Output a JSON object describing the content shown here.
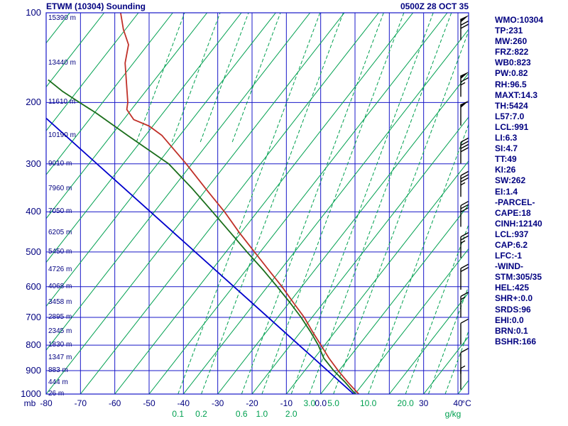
{
  "header": {
    "title": "ETWM (10304) Sounding",
    "timestamp": "0500Z 28 OCT 35"
  },
  "colors": {
    "background": "#ffffff",
    "navy": "#000080",
    "grid_blue": "#1818c8",
    "iso_green": "#00a050",
    "mix_green": "#00a050",
    "temp_red": "#c03028",
    "dewpoint_green": "#1b6e1b",
    "parcel_blue": "#0000cc",
    "barb_black": "#000000"
  },
  "indices": {
    "lines": [
      "WMO:10304",
      "TP:231",
      "MW:260",
      "FRZ:822",
      "WB0:823",
      "PW:0.82",
      "RH:96.5",
      "MAXT:14.3",
      "TH:5424",
      "L57:7.0",
      "LCL:991",
      "LI:6.3",
      "SI:4.7",
      "TT:49",
      "KI:26",
      "SW:262",
      "EI:1.4",
      "-PARCEL-",
      "CAPE:18",
      "CINH:12140",
      "LCL:937",
      "CAP:6.2",
      "LFC:-1",
      "-WIND-",
      "STM:305/35",
      "HEL:425",
      "SHR+:0.0",
      "SRDS:96",
      "EHI:0.0",
      "BRN:0.1",
      "BSHR:166"
    ]
  },
  "chart_data": {
    "type": "line",
    "title": "ETWM (10304) Sounding",
    "subtitle": "0500Z 28 OCT 35",
    "x_axis": {
      "unit": "°C",
      "min": -80,
      "max": 40,
      "ticks": [
        {
          "t": -80,
          "label": "-80"
        },
        {
          "t": -70,
          "label": "-70"
        },
        {
          "t": -60,
          "label": "-60"
        },
        {
          "t": -50,
          "label": "-50"
        },
        {
          "t": -40,
          "label": "-40"
        },
        {
          "t": -30,
          "label": "-30"
        },
        {
          "t": -20,
          "label": "-20"
        },
        {
          "t": -10,
          "label": "-10"
        },
        {
          "t": 0,
          "label": "0.0"
        },
        {
          "t": 30,
          "label": "30"
        },
        {
          "t": 40,
          "label": "40"
        }
      ]
    },
    "y_axis": {
      "unit": "mb",
      "scale": "stuve-pressure",
      "min": 100,
      "max": 1000,
      "ticks": [
        100,
        200,
        300,
        400,
        500,
        600,
        700,
        800,
        900,
        1000
      ]
    },
    "heights": [
      {
        "p": 100,
        "label": "15390 m"
      },
      {
        "p": 150,
        "label": "13440 m"
      },
      {
        "p": 200,
        "label": "11610 m"
      },
      {
        "p": 250,
        "label": "10190 m"
      },
      {
        "p": 300,
        "label": "9010 m"
      },
      {
        "p": 350,
        "label": "7960 m"
      },
      {
        "p": 400,
        "label": "7050 m"
      },
      {
        "p": 450,
        "label": "6205 m"
      },
      {
        "p": 500,
        "label": "5450 m"
      },
      {
        "p": 550,
        "label": "4726 m"
      },
      {
        "p": 600,
        "label": "4068 m"
      },
      {
        "p": 650,
        "label": "3458 m"
      },
      {
        "p": 700,
        "label": "2895 m"
      },
      {
        "p": 750,
        "label": "2345 m"
      },
      {
        "p": 800,
        "label": "1830 m"
      },
      {
        "p": 850,
        "label": "1347 m"
      },
      {
        "p": 900,
        "label": "883 m"
      },
      {
        "p": 950,
        "label": "444 m"
      },
      {
        "p": 1000,
        "label": "26 m"
      }
    ],
    "mixing_ratio": {
      "unit": "g/kg",
      "line_values": [
        0.1,
        0.2,
        0.6,
        1.0,
        2.0,
        3.0,
        5.0,
        10.0,
        20.0,
        30.0,
        40.0
      ],
      "row1_labels": [
        {
          "w": 3,
          "label": "3.0"
        },
        {
          "w": 5,
          "label": "5.0"
        },
        {
          "w": 10,
          "label": "10.0"
        },
        {
          "w": 20,
          "label": "20.0"
        }
      ],
      "row2_labels": [
        {
          "w": 0.1,
          "label": "0.1"
        },
        {
          "w": 0.2,
          "label": "0.2"
        },
        {
          "w": 0.6,
          "label": "0.6"
        },
        {
          "w": 1,
          "label": "1.0"
        },
        {
          "w": 2,
          "label": "2.0"
        }
      ]
    },
    "series": [
      {
        "name": "temperature",
        "color_key": "temp_red",
        "points": [
          [
            1000,
            11.1
          ],
          [
            950,
            8.0
          ],
          [
            900,
            5.1
          ],
          [
            850,
            2.4
          ],
          [
            800,
            0.1
          ],
          [
            750,
            -2.4
          ],
          [
            700,
            -4.8
          ],
          [
            650,
            -8.0
          ],
          [
            600,
            -11.3
          ],
          [
            550,
            -15.2
          ],
          [
            500,
            -19.3
          ],
          [
            450,
            -23.7
          ],
          [
            400,
            -28.0
          ],
          [
            350,
            -33.4
          ],
          [
            300,
            -39.2
          ],
          [
            250,
            -46.3
          ],
          [
            235,
            -50.0
          ],
          [
            225,
            -54.5
          ],
          [
            210,
            -56.5
          ],
          [
            200,
            -56.2
          ],
          [
            150,
            -57.0
          ],
          [
            130,
            -56.0
          ],
          [
            115,
            -57.5
          ],
          [
            100,
            -58.3
          ]
        ]
      },
      {
        "name": "dewpoint",
        "color_key": "dewpoint_green",
        "points": [
          [
            1000,
            10.1
          ],
          [
            950,
            7.2
          ],
          [
            900,
            3.8
          ],
          [
            850,
            0.9
          ],
          [
            800,
            -0.7
          ],
          [
            750,
            -3.0
          ],
          [
            700,
            -5.7
          ],
          [
            650,
            -9.0
          ],
          [
            600,
            -12.7
          ],
          [
            550,
            -16.8
          ],
          [
            500,
            -21.5
          ],
          [
            450,
            -26.3
          ],
          [
            400,
            -31.5
          ],
          [
            350,
            -37.3
          ],
          [
            300,
            -44.3
          ],
          [
            250,
            -56.3
          ],
          [
            215,
            -65.5
          ],
          [
            200,
            -70.3
          ],
          [
            185,
            -75.2
          ],
          [
            170,
            -79.4
          ]
        ]
      },
      {
        "name": "parcel",
        "color_key": "parcel_blue",
        "points": [
          [
            1000,
            9.6
          ],
          [
            223,
            -80
          ]
        ]
      }
    ],
    "wind_barbs": [
      {
        "p": 115,
        "flag": 1,
        "full": 2,
        "half": 0
      },
      {
        "p": 178,
        "flag": 1,
        "full": 1,
        "half": 1
      },
      {
        "p": 218,
        "flag": 1,
        "full": 0,
        "half": 0
      },
      {
        "p": 280,
        "flag": 0,
        "full": 4,
        "half": 0
      },
      {
        "p": 344,
        "flag": 0,
        "full": 3,
        "half": 1
      },
      {
        "p": 410,
        "flag": 0,
        "full": 3,
        "half": 0
      },
      {
        "p": 488,
        "flag": 0,
        "full": 2,
        "half": 1
      },
      {
        "p": 577,
        "flag": 0,
        "full": 2,
        "half": 0
      },
      {
        "p": 665,
        "flag": 0,
        "full": 1,
        "half": 1
      },
      {
        "p": 758,
        "flag": 0,
        "full": 1,
        "half": 0
      },
      {
        "p": 870,
        "flag": 0,
        "full": 1,
        "half": 0
      },
      {
        "p": 935,
        "flag": 0,
        "full": 0,
        "half": 1
      }
    ]
  }
}
